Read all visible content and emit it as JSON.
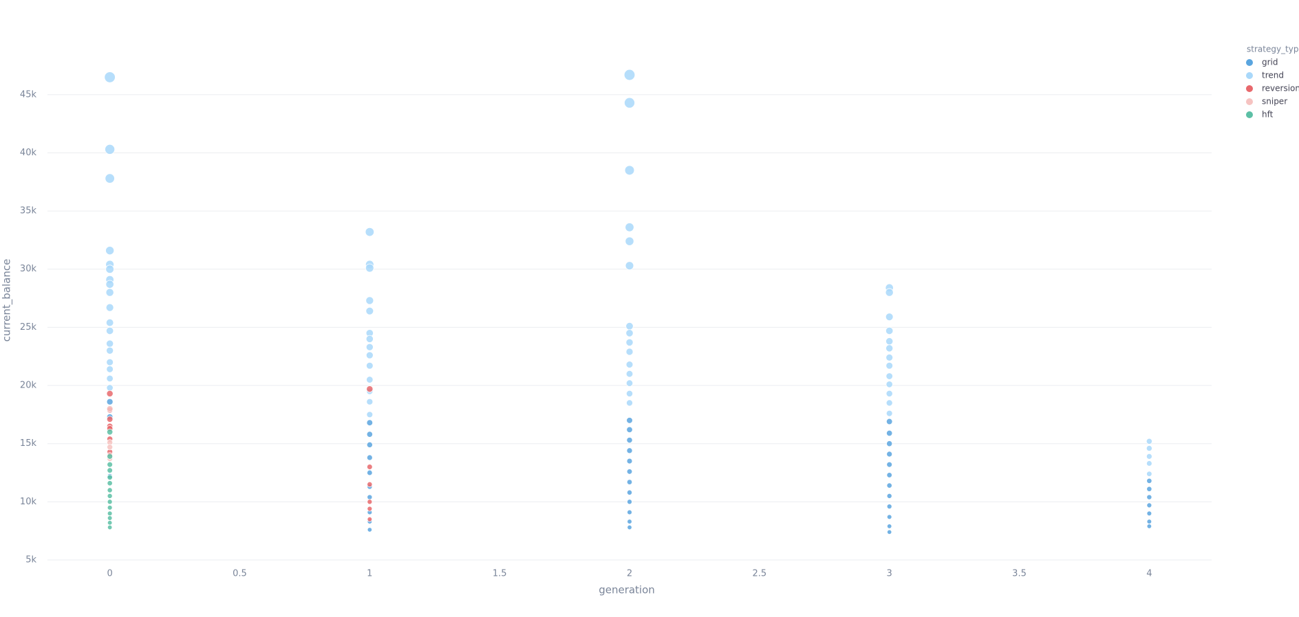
{
  "chart_data": {
    "type": "scatter",
    "x_label": "generation",
    "y_label": "current_balance",
    "legend_title": "strategy_type",
    "xlim": [
      -0.24,
      4.24
    ],
    "ylim": [
      5000,
      48000
    ],
    "xticks": [
      0,
      0.5,
      1,
      1.5,
      2,
      2.5,
      3,
      3.5,
      4
    ],
    "yticks": [
      {
        "value": 5000,
        "label": "5k"
      },
      {
        "value": 10000,
        "label": "10k"
      },
      {
        "value": 15000,
        "label": "15k"
      },
      {
        "value": 20000,
        "label": "20k"
      },
      {
        "value": 25000,
        "label": "25k"
      },
      {
        "value": 30000,
        "label": "30k"
      },
      {
        "value": 35000,
        "label": "35k"
      },
      {
        "value": 40000,
        "label": "40k"
      },
      {
        "value": 45000,
        "label": "45k"
      }
    ],
    "grid": true,
    "legend": "right",
    "series": [
      {
        "name": "grid",
        "color": "#5aa5df",
        "x": [
          0,
          0,
          0,
          1,
          1,
          1,
          1,
          1,
          1,
          1,
          1,
          1,
          1,
          2,
          2,
          2,
          2,
          2,
          2,
          2,
          2,
          2,
          2,
          2,
          2,
          3,
          3,
          3,
          3,
          3,
          3,
          3,
          3,
          3,
          3,
          3,
          3,
          4,
          4,
          4,
          4,
          4,
          4,
          4
        ],
        "y": [
          18600,
          17300,
          12200,
          16800,
          15800,
          14900,
          13800,
          12500,
          11300,
          10400,
          9100,
          8300,
          7600,
          17000,
          16200,
          15300,
          14400,
          13500,
          12600,
          11700,
          10800,
          10000,
          9100,
          8300,
          7800,
          16900,
          15900,
          15000,
          14100,
          13200,
          12300,
          11400,
          10500,
          9600,
          8700,
          7900,
          7400,
          11800,
          11100,
          10400,
          9700,
          9000,
          8300,
          7900
        ]
      },
      {
        "name": "trend",
        "color": "#a9d8fa",
        "x": [
          0,
          0,
          0,
          0,
          0,
          0,
          0,
          0,
          0,
          0,
          0,
          0,
          0,
          0,
          0,
          0,
          0,
          0,
          1,
          1,
          1,
          1,
          1,
          1,
          1,
          1,
          1,
          1,
          1,
          1,
          1,
          1,
          2,
          2,
          2,
          2,
          2,
          2,
          2,
          2,
          2,
          2,
          2,
          2,
          2,
          2,
          2,
          3,
          3,
          3,
          3,
          3,
          3,
          3,
          3,
          3,
          3,
          3,
          3,
          3,
          4,
          4,
          4,
          4,
          4
        ],
        "y": [
          46500,
          40300,
          37800,
          31600,
          30400,
          30000,
          29100,
          28700,
          28000,
          26700,
          25400,
          24700,
          23600,
          23000,
          22000,
          21400,
          20600,
          19800,
          33200,
          30400,
          30100,
          27300,
          26400,
          24500,
          24000,
          23300,
          22600,
          21700,
          20500,
          19500,
          18600,
          17500,
          46700,
          44300,
          38500,
          33600,
          32400,
          30300,
          25100,
          24500,
          23700,
          22900,
          21800,
          21000,
          20200,
          19300,
          18500,
          28400,
          28000,
          25900,
          24700,
          23800,
          23200,
          22400,
          21700,
          20800,
          20100,
          19300,
          18500,
          17600,
          15200,
          14600,
          13900,
          13300,
          12400
        ]
      },
      {
        "name": "reversion",
        "color": "#e8686c",
        "x": [
          0,
          0,
          0,
          0,
          0,
          0,
          0,
          0,
          1,
          1,
          1,
          1,
          1,
          1
        ],
        "y": [
          19300,
          17900,
          17100,
          16500,
          16300,
          15400,
          14300,
          14000,
          19700,
          13000,
          11500,
          10000,
          9400,
          8500
        ]
      },
      {
        "name": "sniper",
        "color": "#f6c3c1",
        "x": [
          0,
          0,
          0,
          0
        ],
        "y": [
          18000,
          15100,
          14700,
          13700
        ]
      },
      {
        "name": "hft",
        "color": "#5cbfa5",
        "x": [
          0,
          0,
          0,
          0,
          0,
          0,
          0,
          0,
          0,
          0,
          0,
          0,
          0,
          0
        ],
        "y": [
          16000,
          13900,
          13200,
          12700,
          12100,
          11600,
          11000,
          10500,
          10000,
          9500,
          9000,
          8600,
          8200,
          7800
        ]
      }
    ]
  }
}
